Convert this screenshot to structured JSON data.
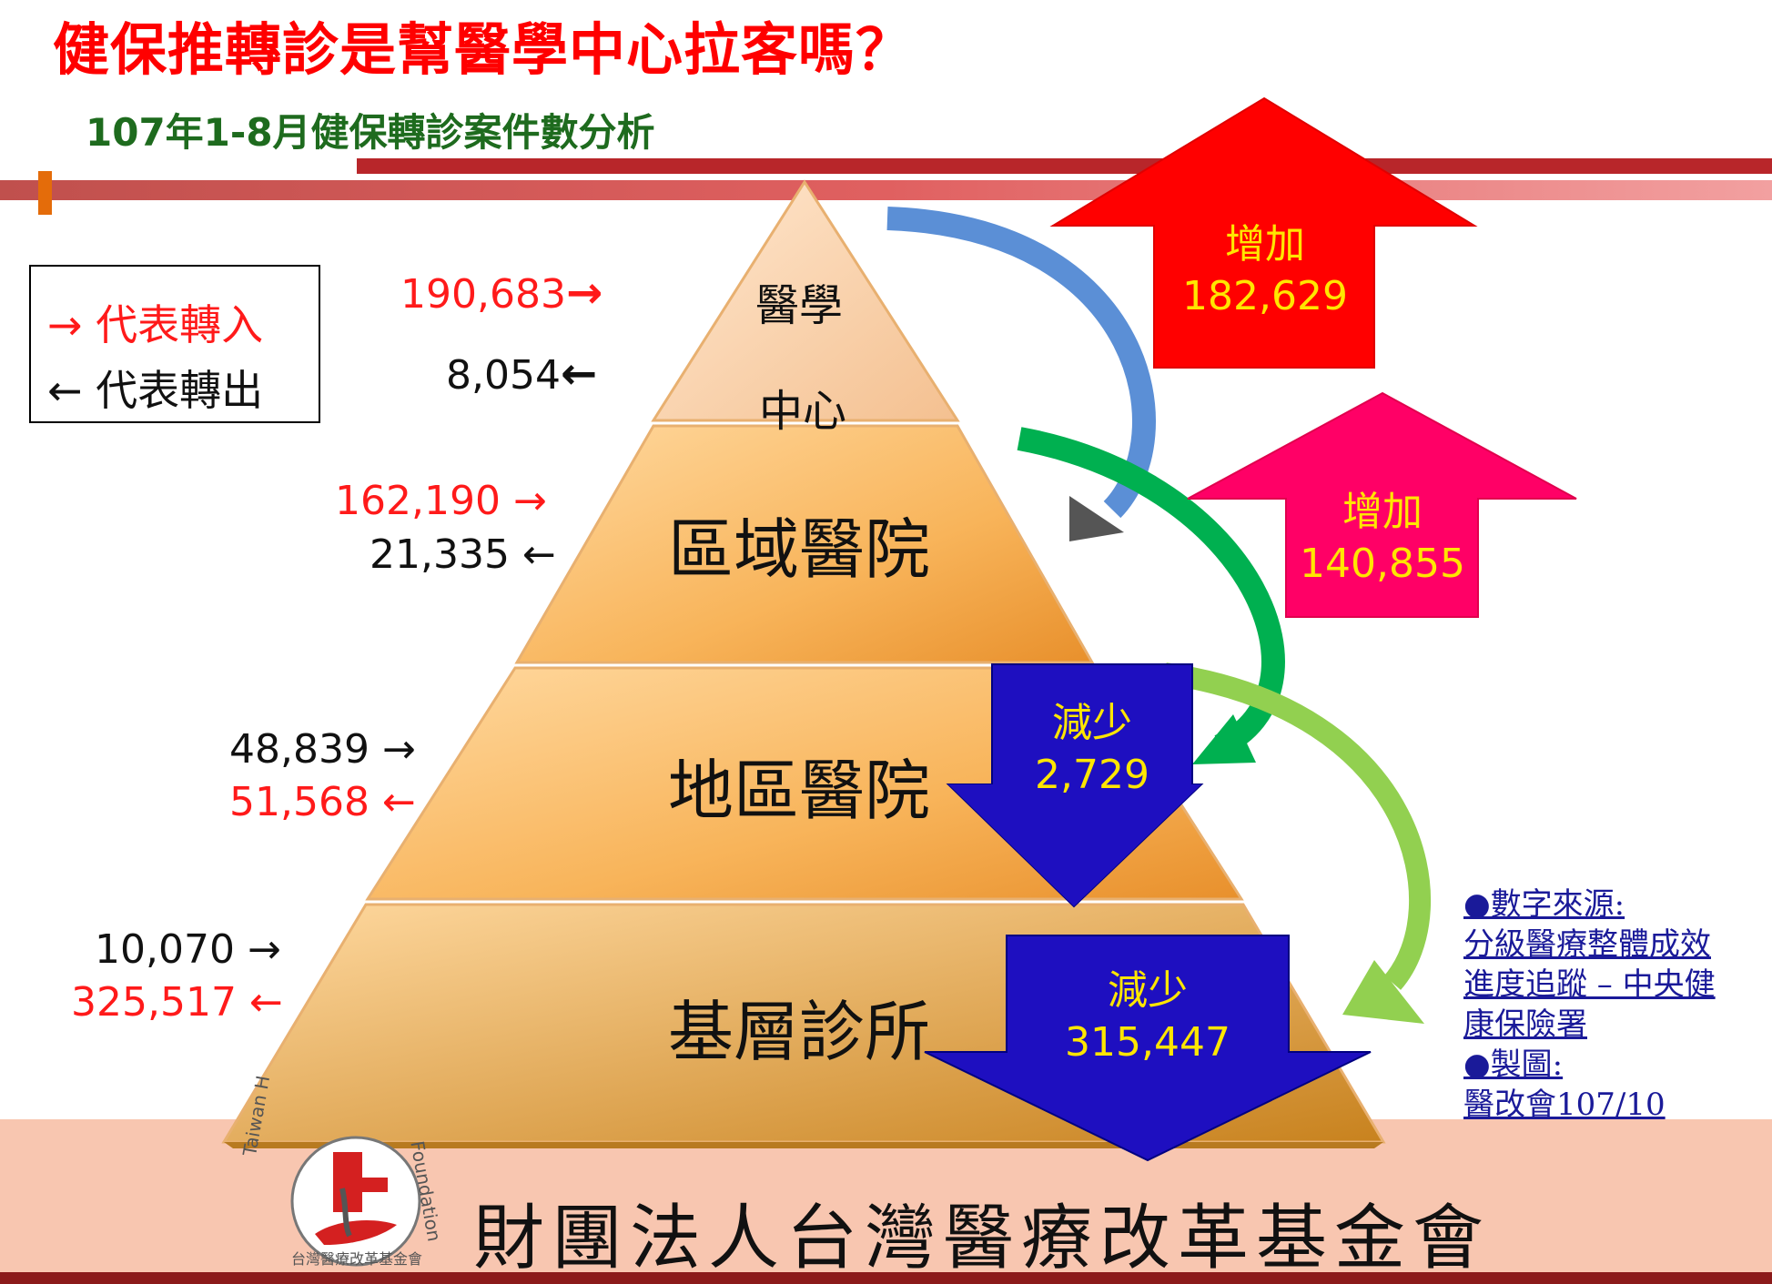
{
  "title": "健保推轉診是幫醫學中心拉客嗎？",
  "subtitle": "107年1-8月健保轉診案件數分析",
  "legend": {
    "in_label": "→ 代表轉入",
    "out_label": "← 代表轉出"
  },
  "tiers": {
    "medical_center": {
      "line1": "醫學",
      "line2": "中心",
      "in": "190,683",
      "out": "8,054",
      "in_arrow": "→",
      "out_arrow": "←"
    },
    "regional": {
      "label": "區域醫院",
      "in": "162,190",
      "out": "21,335",
      "in_arrow": "→",
      "out_arrow": "←"
    },
    "district": {
      "label": "地區醫院",
      "in": "48,839",
      "out": "51,568",
      "in_arrow": "→",
      "out_arrow": "←"
    },
    "clinic": {
      "label": "基層診所",
      "in": "10,070",
      "out": "325,517",
      "in_arrow": "→",
      "out_arrow": "←"
    }
  },
  "changes": {
    "medical_center": {
      "label": "增加",
      "value": "182,629"
    },
    "regional": {
      "label": "增加",
      "value": "140,855"
    },
    "district": {
      "label": "減少",
      "value": "2,729"
    },
    "clinic": {
      "label": "減少",
      "value": "315,447"
    }
  },
  "notes": [
    "●數字來源:",
    "分級醫療整體成效",
    "進度追蹤 – 中央健",
    "康保險署",
    "●製圖:",
    "醫改會107/10"
  ],
  "footer": {
    "org_name": "財團法人台灣醫療改革基金會",
    "logo_text_left": "Taiwan H",
    "logo_text_right": "Foundation",
    "logo_text_bottom": "台灣醫療改革基金會"
  },
  "colors": {
    "title": "#ff0000",
    "subtitle": "#1e6b1e",
    "increase_red": "#ff0000",
    "increase_pink": "#ff0066",
    "decrease_blue": "#1e0fc0",
    "arrow_blue": "#5b8fd6",
    "arrow_green": "#00b050",
    "arrow_lightgreen": "#92d050",
    "footer_band": "#f8c6b0"
  }
}
